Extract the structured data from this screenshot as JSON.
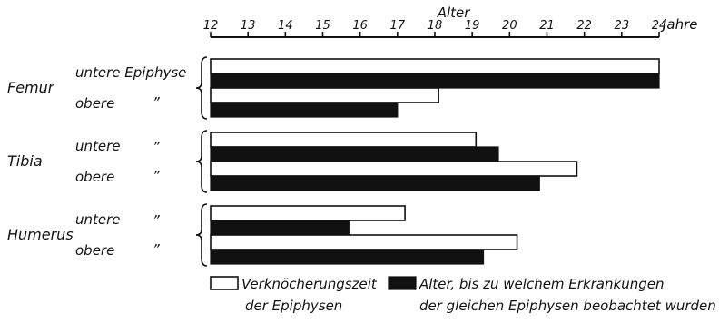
{
  "chart_data": {
    "type": "bar",
    "orientation": "horizontal",
    "axis_title": "Alter",
    "axis_unit": "Jahre",
    "xlim": [
      12,
      24
    ],
    "ticks": [
      "12",
      "13",
      "14",
      "15",
      "16",
      "17",
      "18",
      "19",
      "20",
      "21",
      "22",
      "23",
      "24"
    ],
    "groups": [
      {
        "name": "Femur",
        "rows": [
          {
            "label": "untere Epiphyse",
            "ditto": "",
            "ossification": 24.0,
            "disease": 24.0
          },
          {
            "label": "obere",
            "ditto": "”",
            "ossification": 18.1,
            "disease": 17.0
          }
        ]
      },
      {
        "name": "Tibia",
        "rows": [
          {
            "label": "untere",
            "ditto": "”",
            "ossification": 19.1,
            "disease": 19.7
          },
          {
            "label": "obere",
            "ditto": "”",
            "ossification": 21.8,
            "disease": 20.8
          }
        ]
      },
      {
        "name": "Humerus",
        "rows": [
          {
            "label": "untere",
            "ditto": "”",
            "ossification": 17.2,
            "disease": 15.7
          },
          {
            "label": "obere",
            "ditto": "”",
            "ossification": 20.2,
            "disease": 19.3
          }
        ]
      }
    ],
    "legend": {
      "placement": "bottom",
      "ossification_line1": "Verknöcherungszeit",
      "ossification_line2": "der Epiphysen",
      "disease_line1": "Alter, bis zu welchem Erkrankungen",
      "disease_line2": "der gleichen Epiphysen beobachtet wurden"
    },
    "colors": {
      "ossification_fill": "#ffffff",
      "disease_fill": "#111111",
      "outline": "#111111"
    }
  }
}
